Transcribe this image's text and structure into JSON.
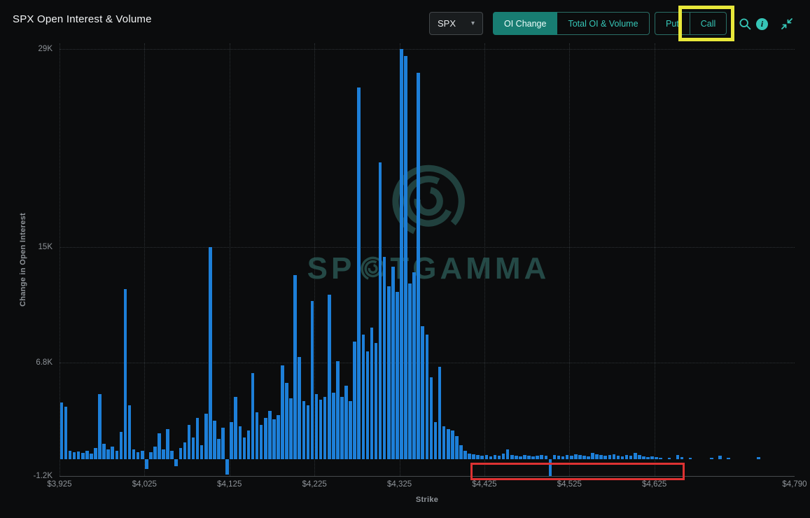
{
  "page": {
    "title": "SPX Open Interest & Volume"
  },
  "controls": {
    "symbol": {
      "value": "SPX"
    },
    "view_toggle": [
      {
        "label": "OI Change",
        "active": true
      },
      {
        "label": "Total OI & Volume",
        "active": false
      }
    ],
    "side_toggle": [
      {
        "label": "Put",
        "active": false
      },
      {
        "label": "Call",
        "active": false
      }
    ],
    "icons": [
      "search-icon",
      "info-icon",
      "compress-icon"
    ]
  },
  "watermark": {
    "text_before": "SP",
    "text_after": "TGAMMA"
  },
  "colors": {
    "background": "#0b0c0d",
    "accent": "#36c6b7",
    "accent_active_bg": "#187d72",
    "bar": "#1d7fd8",
    "grid": "#2d3235",
    "axis_label": "#8e9398",
    "watermark": "#2d5e59",
    "annotation_red": "#dd3232",
    "annotation_yellow": "#e8e83a"
  },
  "chart_data": {
    "type": "bar",
    "title": "SPX Open Interest & Volume",
    "xlabel": "Strike",
    "ylabel": "Change in Open Interest",
    "xlim": [
      3925,
      4790
    ],
    "ylim": [
      -1200,
      29400
    ],
    "grid": "dotted",
    "legend": "none",
    "x_ticks": [
      {
        "value": 3925,
        "label": "$3,925"
      },
      {
        "value": 4025,
        "label": "$4,025"
      },
      {
        "value": 4125,
        "label": "$4,125"
      },
      {
        "value": 4225,
        "label": "$4,225"
      },
      {
        "value": 4325,
        "label": "$4,325"
      },
      {
        "value": 4425,
        "label": "$4,425"
      },
      {
        "value": 4525,
        "label": "$4,525"
      },
      {
        "value": 4625,
        "label": "$4,625"
      },
      {
        "value": 4790,
        "label": "$4,790"
      }
    ],
    "y_ticks": [
      {
        "value": 29000,
        "label": "29K"
      },
      {
        "value": 15000,
        "label": "15K"
      },
      {
        "value": 6800,
        "label": "6.8K"
      },
      {
        "value": -1200,
        "label": "-1.2K"
      }
    ],
    "points": [
      [
        3925,
        4000
      ],
      [
        3930,
        3700
      ],
      [
        3935,
        600
      ],
      [
        3940,
        500
      ],
      [
        3945,
        550
      ],
      [
        3950,
        450
      ],
      [
        3955,
        600
      ],
      [
        3960,
        400
      ],
      [
        3965,
        800
      ],
      [
        3970,
        4600
      ],
      [
        3975,
        1100
      ],
      [
        3980,
        700
      ],
      [
        3985,
        900
      ],
      [
        3990,
        600
      ],
      [
        3995,
        1900
      ],
      [
        4000,
        12000
      ],
      [
        4005,
        3800
      ],
      [
        4010,
        700
      ],
      [
        4015,
        500
      ],
      [
        4020,
        600
      ],
      [
        4025,
        -700
      ],
      [
        4030,
        500
      ],
      [
        4035,
        900
      ],
      [
        4040,
        1800
      ],
      [
        4045,
        700
      ],
      [
        4050,
        2100
      ],
      [
        4055,
        600
      ],
      [
        4060,
        -500
      ],
      [
        4065,
        800
      ],
      [
        4070,
        1200
      ],
      [
        4075,
        2400
      ],
      [
        4080,
        1500
      ],
      [
        4085,
        2900
      ],
      [
        4090,
        1000
      ],
      [
        4095,
        3200
      ],
      [
        4100,
        15000
      ],
      [
        4105,
        2700
      ],
      [
        4110,
        1400
      ],
      [
        4115,
        2200
      ],
      [
        4120,
        -1100
      ],
      [
        4125,
        2600
      ],
      [
        4130,
        4400
      ],
      [
        4135,
        2300
      ],
      [
        4140,
        1500
      ],
      [
        4145,
        2000
      ],
      [
        4150,
        6100
      ],
      [
        4155,
        3300
      ],
      [
        4160,
        2400
      ],
      [
        4165,
        2900
      ],
      [
        4170,
        3400
      ],
      [
        4175,
        2800
      ],
      [
        4180,
        3100
      ],
      [
        4185,
        6600
      ],
      [
        4190,
        5400
      ],
      [
        4195,
        4300
      ],
      [
        4200,
        13000
      ],
      [
        4205,
        7200
      ],
      [
        4210,
        4100
      ],
      [
        4215,
        3800
      ],
      [
        4220,
        11200
      ],
      [
        4225,
        4600
      ],
      [
        4230,
        4200
      ],
      [
        4235,
        4400
      ],
      [
        4240,
        11600
      ],
      [
        4245,
        4700
      ],
      [
        4250,
        6900
      ],
      [
        4255,
        4400
      ],
      [
        4260,
        5200
      ],
      [
        4265,
        4100
      ],
      [
        4270,
        8300
      ],
      [
        4275,
        26300
      ],
      [
        4280,
        8800
      ],
      [
        4285,
        7600
      ],
      [
        4290,
        9300
      ],
      [
        4295,
        8200
      ],
      [
        4300,
        21000
      ],
      [
        4305,
        14300
      ],
      [
        4310,
        12200
      ],
      [
        4315,
        13600
      ],
      [
        4320,
        11800
      ],
      [
        4325,
        29000
      ],
      [
        4330,
        28500
      ],
      [
        4335,
        12400
      ],
      [
        4340,
        13200
      ],
      [
        4345,
        27300
      ],
      [
        4350,
        9400
      ],
      [
        4355,
        8800
      ],
      [
        4360,
        5800
      ],
      [
        4365,
        2600
      ],
      [
        4370,
        6500
      ],
      [
        4375,
        2300
      ],
      [
        4380,
        2100
      ],
      [
        4385,
        2000
      ],
      [
        4390,
        1600
      ],
      [
        4395,
        1000
      ],
      [
        4400,
        600
      ],
      [
        4405,
        400
      ],
      [
        4410,
        350
      ],
      [
        4415,
        300
      ],
      [
        4420,
        250
      ],
      [
        4425,
        300
      ],
      [
        4430,
        200
      ],
      [
        4435,
        300
      ],
      [
        4440,
        250
      ],
      [
        4445,
        400
      ],
      [
        4450,
        700
      ],
      [
        4455,
        300
      ],
      [
        4460,
        250
      ],
      [
        4465,
        200
      ],
      [
        4470,
        300
      ],
      [
        4475,
        250
      ],
      [
        4480,
        200
      ],
      [
        4485,
        250
      ],
      [
        4490,
        300
      ],
      [
        4495,
        250
      ],
      [
        4500,
        -1200
      ],
      [
        4505,
        300
      ],
      [
        4510,
        250
      ],
      [
        4515,
        200
      ],
      [
        4520,
        300
      ],
      [
        4525,
        250
      ],
      [
        4530,
        350
      ],
      [
        4535,
        300
      ],
      [
        4540,
        250
      ],
      [
        4545,
        200
      ],
      [
        4550,
        450
      ],
      [
        4555,
        350
      ],
      [
        4560,
        300
      ],
      [
        4565,
        250
      ],
      [
        4570,
        300
      ],
      [
        4575,
        350
      ],
      [
        4580,
        250
      ],
      [
        4585,
        200
      ],
      [
        4590,
        300
      ],
      [
        4595,
        250
      ],
      [
        4600,
        450
      ],
      [
        4605,
        300
      ],
      [
        4610,
        200
      ],
      [
        4615,
        150
      ],
      [
        4620,
        200
      ],
      [
        4625,
        150
      ],
      [
        4630,
        100
      ],
      [
        4635,
        0
      ],
      [
        4640,
        100
      ],
      [
        4645,
        0
      ],
      [
        4650,
        300
      ],
      [
        4655,
        150
      ],
      [
        4660,
        0
      ],
      [
        4665,
        100
      ],
      [
        4670,
        0
      ],
      [
        4675,
        0
      ],
      [
        4680,
        0
      ],
      [
        4685,
        0
      ],
      [
        4690,
        100
      ],
      [
        4695,
        0
      ],
      [
        4700,
        250
      ],
      [
        4705,
        0
      ],
      [
        4710,
        100
      ],
      [
        4715,
        0
      ],
      [
        4720,
        0
      ],
      [
        4725,
        0
      ],
      [
        4730,
        0
      ],
      [
        4735,
        0
      ],
      [
        4740,
        0
      ],
      [
        4745,
        150
      ],
      [
        4750,
        0
      ],
      [
        4755,
        0
      ],
      [
        4760,
        0
      ],
      [
        4765,
        0
      ],
      [
        4770,
        0
      ],
      [
        4775,
        0
      ],
      [
        4780,
        0
      ],
      [
        4785,
        0
      ],
      [
        4790,
        0
      ]
    ]
  }
}
